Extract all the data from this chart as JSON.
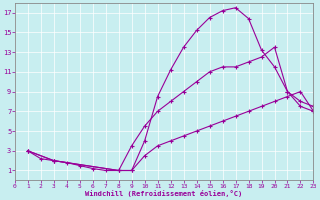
{
  "xlabel": "Windchill (Refroidissement éolien,°C)",
  "bg_color": "#c8eef0",
  "line_color": "#990099",
  "grid_color": "#aadddd",
  "xlim": [
    0,
    23
  ],
  "ylim": [
    0,
    18
  ],
  "xticks": [
    0,
    1,
    2,
    3,
    4,
    5,
    6,
    7,
    8,
    9,
    10,
    11,
    12,
    13,
    14,
    15,
    16,
    17,
    18,
    19,
    20,
    21,
    22,
    23
  ],
  "yticks": [
    1,
    3,
    5,
    7,
    9,
    11,
    13,
    15,
    17
  ],
  "line1_x": [
    1,
    2,
    3,
    4,
    5,
    6,
    7,
    8,
    9,
    10,
    11,
    12,
    13,
    14,
    15,
    16,
    17,
    18,
    19,
    20,
    21,
    22,
    23
  ],
  "line1_y": [
    3.0,
    2.2,
    2.0,
    1.8,
    1.5,
    1.2,
    1.0,
    1.0,
    1.0,
    4.0,
    8.5,
    11.2,
    13.5,
    15.2,
    16.5,
    17.2,
    17.5,
    16.4,
    13.2,
    11.5,
    9.0,
    7.5,
    7.0
  ],
  "line2_x": [
    1,
    3,
    8,
    9,
    10,
    11,
    12,
    13,
    14,
    15,
    16,
    17,
    18,
    19,
    20,
    21,
    22,
    23
  ],
  "line2_y": [
    3.0,
    2.0,
    1.0,
    3.5,
    5.5,
    7.0,
    8.0,
    9.0,
    10.0,
    11.0,
    11.5,
    11.5,
    12.0,
    12.5,
    13.5,
    9.0,
    8.0,
    7.5
  ],
  "line3_x": [
    1,
    3,
    8,
    9,
    10,
    11,
    12,
    13,
    14,
    15,
    16,
    17,
    18,
    19,
    20,
    21,
    22,
    23
  ],
  "line3_y": [
    3.0,
    2.0,
    1.0,
    1.0,
    2.5,
    3.5,
    4.0,
    4.5,
    5.0,
    5.5,
    6.0,
    6.5,
    7.0,
    7.5,
    8.0,
    8.5,
    9.0,
    7.0
  ]
}
